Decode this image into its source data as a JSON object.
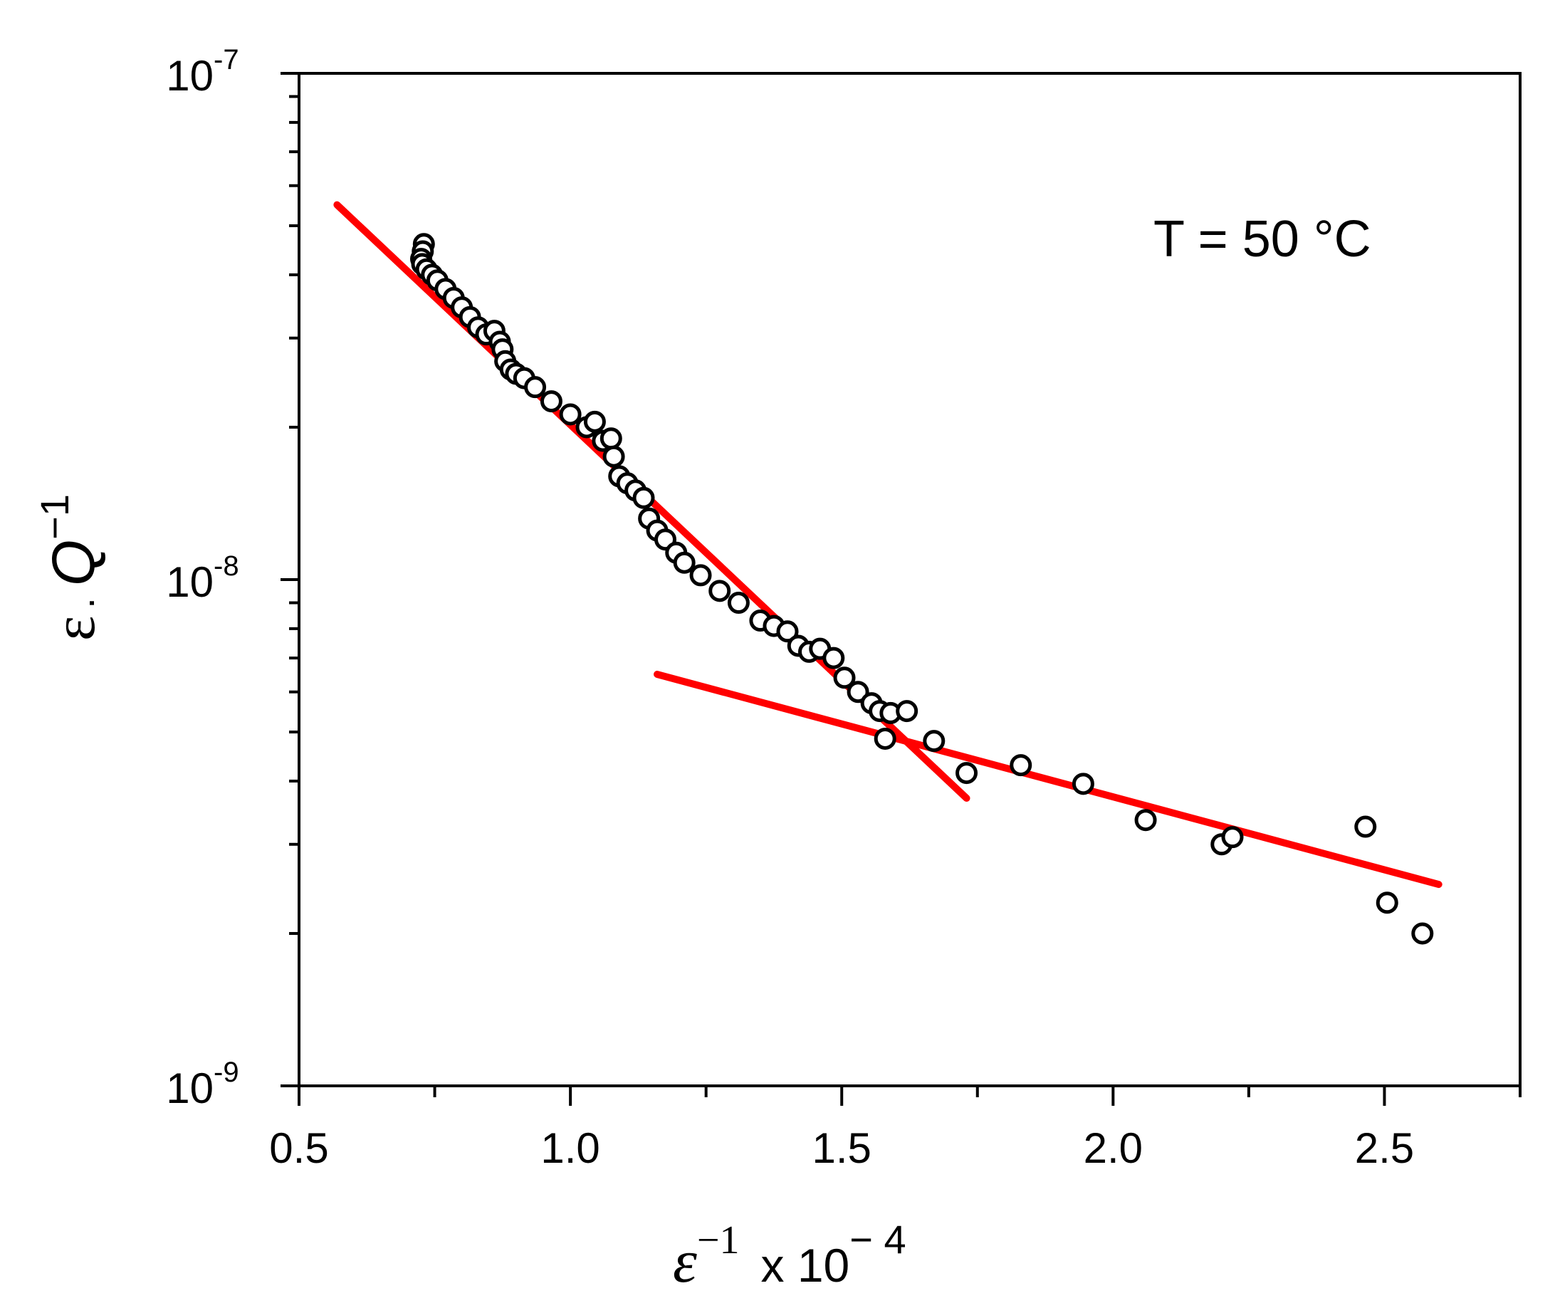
{
  "chart_data": {
    "type": "scatter",
    "title": "",
    "annotation": "T = 50 °C",
    "xlabel": {
      "symbol": "ε",
      "exponent": "−1",
      "multiplier": "x 10",
      "multiplier_exponent": "− 4"
    },
    "ylabel": {
      "symbol": "ε",
      "dot": ".",
      "quantity": "Q",
      "exponent": "−1"
    },
    "xlim": [
      0.5,
      2.75
    ],
    "ylim": [
      1e-09,
      1e-07
    ],
    "yscale": "log",
    "grid": false,
    "x_ticks": [
      {
        "value": 0.5,
        "label": "0.5"
      },
      {
        "value": 1.0,
        "label": "1.0"
      },
      {
        "value": 1.5,
        "label": "1.5"
      },
      {
        "value": 2.0,
        "label": "2.0"
      },
      {
        "value": 2.5,
        "label": "2.5"
      }
    ],
    "y_ticks": [
      {
        "value": 1e-09,
        "base": "10",
        "exp": "-9"
      },
      {
        "value": 1e-08,
        "base": "10",
        "exp": "-8"
      },
      {
        "value": 1e-07,
        "base": "10",
        "exp": "-7"
      }
    ],
    "series": [
      {
        "marker": "open-circle",
        "color": "#000000",
        "points": [
          [
            0.73,
            4.6e-08
          ],
          [
            0.728,
            4.45e-08
          ],
          [
            0.725,
            4.3e-08
          ],
          [
            0.727,
            4.2e-08
          ],
          [
            0.735,
            4.1e-08
          ],
          [
            0.745,
            4e-08
          ],
          [
            0.755,
            3.9e-08
          ],
          [
            0.77,
            3.75e-08
          ],
          [
            0.785,
            3.6e-08
          ],
          [
            0.8,
            3.45e-08
          ],
          [
            0.815,
            3.3e-08
          ],
          [
            0.83,
            3.15e-08
          ],
          [
            0.845,
            3.05e-08
          ],
          [
            0.86,
            3.1e-08
          ],
          [
            0.87,
            2.95e-08
          ],
          [
            0.875,
            2.85e-08
          ],
          [
            0.88,
            2.7e-08
          ],
          [
            0.89,
            2.6e-08
          ],
          [
            0.9,
            2.55e-08
          ],
          [
            0.915,
            2.5e-08
          ],
          [
            0.935,
            2.4e-08
          ],
          [
            0.965,
            2.25e-08
          ],
          [
            1.0,
            2.12e-08
          ],
          [
            1.03,
            2e-08
          ],
          [
            1.045,
            2.05e-08
          ],
          [
            1.06,
            1.88e-08
          ],
          [
            1.075,
            1.9e-08
          ],
          [
            1.08,
            1.75e-08
          ],
          [
            1.09,
            1.6e-08
          ],
          [
            1.105,
            1.55e-08
          ],
          [
            1.12,
            1.5e-08
          ],
          [
            1.135,
            1.45e-08
          ],
          [
            1.145,
            1.32e-08
          ],
          [
            1.16,
            1.25e-08
          ],
          [
            1.175,
            1.2e-08
          ],
          [
            1.195,
            1.13e-08
          ],
          [
            1.21,
            1.08e-08
          ],
          [
            1.24,
            1.02e-08
          ],
          [
            1.275,
            9.5e-09
          ],
          [
            1.31,
            9e-09
          ],
          [
            1.35,
            8.3e-09
          ],
          [
            1.375,
            8.1e-09
          ],
          [
            1.4,
            7.9e-09
          ],
          [
            1.42,
            7.4e-09
          ],
          [
            1.44,
            7.2e-09
          ],
          [
            1.46,
            7.3e-09
          ],
          [
            1.485,
            7e-09
          ],
          [
            1.505,
            6.4e-09
          ],
          [
            1.53,
            6e-09
          ],
          [
            1.555,
            5.7e-09
          ],
          [
            1.57,
            5.5e-09
          ],
          [
            1.59,
            5.45e-09
          ],
          [
            1.62,
            5.5e-09
          ],
          [
            1.58,
            4.85e-09
          ],
          [
            1.67,
            4.8e-09
          ],
          [
            1.73,
            4.15e-09
          ],
          [
            1.83,
            4.3e-09
          ],
          [
            1.945,
            3.95e-09
          ],
          [
            2.06,
            3.35e-09
          ],
          [
            2.2,
            3e-09
          ],
          [
            2.22,
            3.1e-09
          ],
          [
            2.465,
            3.25e-09
          ],
          [
            2.505,
            2.3e-09
          ],
          [
            2.57,
            2e-09
          ]
        ]
      }
    ],
    "fit_lines": [
      {
        "color": "#ff0000",
        "x": [
          0.57,
          1.73
        ],
        "y": [
          5.5e-08,
          3.7e-09
        ]
      },
      {
        "color": "#ff0000",
        "x": [
          1.16,
          2.6
        ],
        "y": [
          6.5e-09,
          2.5e-09
        ]
      }
    ]
  }
}
